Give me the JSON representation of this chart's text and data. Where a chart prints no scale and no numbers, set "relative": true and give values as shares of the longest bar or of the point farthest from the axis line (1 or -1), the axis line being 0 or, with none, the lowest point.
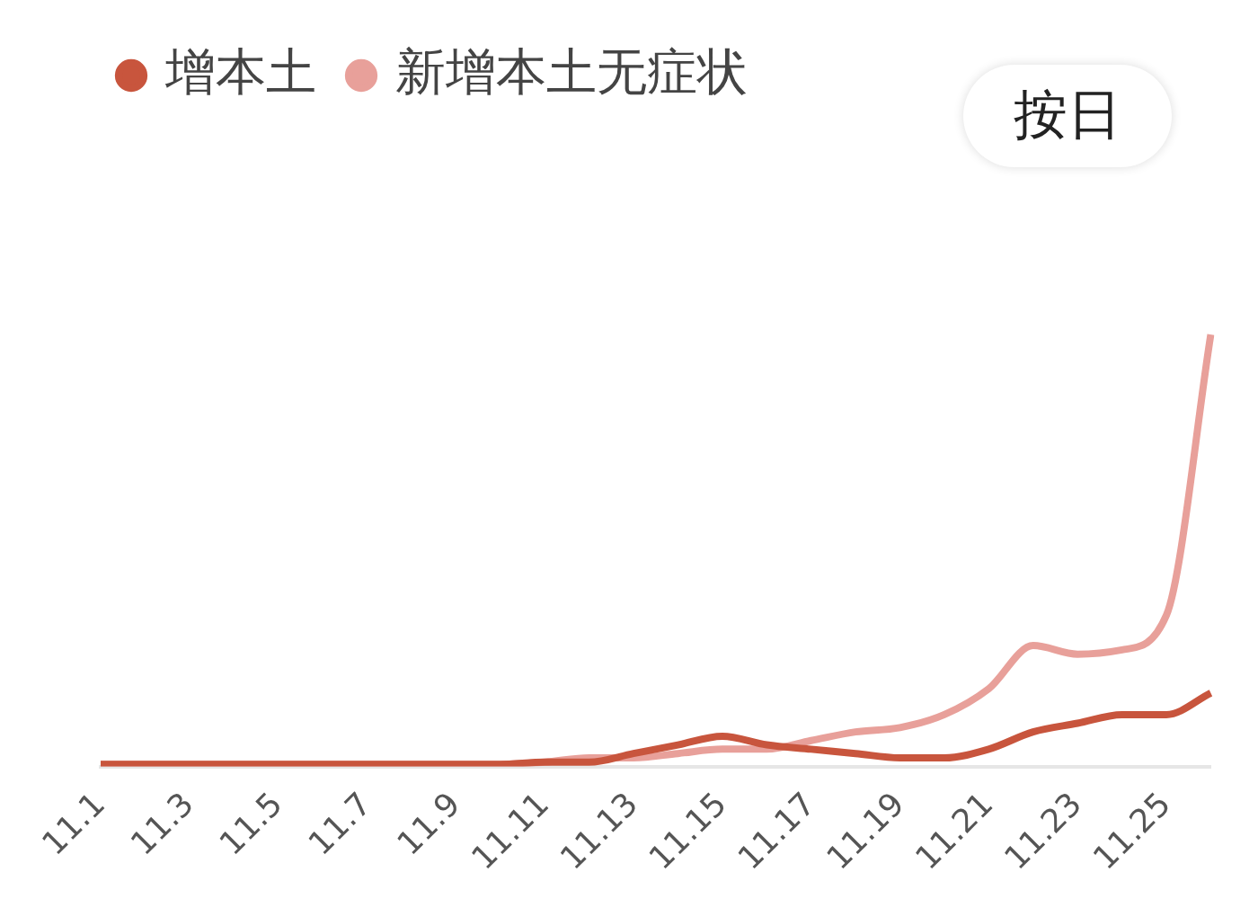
{
  "chart_data": {
    "type": "line",
    "relative": true,
    "categories": [
      "11.1",
      null,
      "11.3",
      null,
      "11.5",
      null,
      "11.7",
      null,
      "11.9",
      null,
      "11.11",
      null,
      "11.13",
      null,
      "11.15",
      null,
      "11.17",
      null,
      "11.19",
      null,
      "11.21",
      null,
      "11.23",
      null,
      "11.25",
      null
    ],
    "series": [
      {
        "name": "增本土",
        "color": "#c8553d",
        "values": [
          0.005,
          0.005,
          0.005,
          0.005,
          0.005,
          0.005,
          0.005,
          0.005,
          0.005,
          0.005,
          0.01,
          0.01,
          0.03,
          0.05,
          0.07,
          0.05,
          0.04,
          0.03,
          0.02,
          0.02,
          0.04,
          0.08,
          0.1,
          0.12,
          0.12,
          0.17
        ]
      },
      {
        "name": "新增本土无症状",
        "color": "#e8a09a",
        "values": [
          0.005,
          0.005,
          0.005,
          0.005,
          0.005,
          0.005,
          0.005,
          0.005,
          0.005,
          0.005,
          0.01,
          0.02,
          0.02,
          0.03,
          0.04,
          0.04,
          0.06,
          0.08,
          0.09,
          0.12,
          0.18,
          0.28,
          0.26,
          0.27,
          0.35,
          1
        ]
      }
    ],
    "legend": "top left",
    "marker": "none",
    "line_style": "solid",
    "annotations": [
      "按日"
    ]
  }
}
